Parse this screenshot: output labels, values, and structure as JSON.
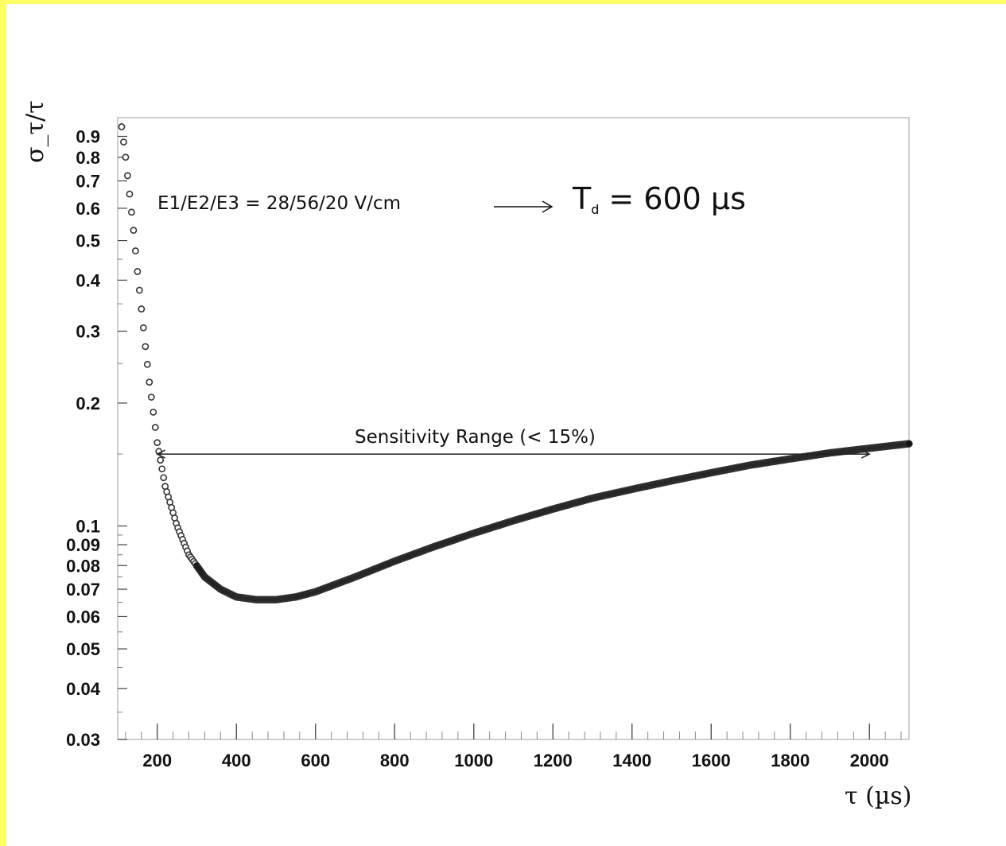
{
  "chart_data": {
    "type": "scatter",
    "title": "",
    "xlabel": "τ (µs)",
    "ylabel": "σ_τ/τ",
    "xlim": [
      100,
      2100
    ],
    "ylim": [
      0.03,
      1.0
    ],
    "y_scale": "log",
    "x_ticks": [
      200,
      400,
      600,
      800,
      1000,
      1200,
      1400,
      1600,
      1800,
      2000
    ],
    "x_tick_labels": [
      "200",
      "400",
      "600",
      "800",
      "1000",
      "1200",
      "1400",
      "1600",
      "1800",
      "2000"
    ],
    "y_ticks": [
      0.03,
      0.04,
      0.05,
      0.06,
      0.07,
      0.08,
      0.09,
      0.1,
      0.2,
      0.3,
      0.4,
      0.5,
      0.6,
      0.7,
      0.8,
      0.9
    ],
    "y_tick_labels": [
      "0.03",
      "0.04",
      "0.05",
      "0.06",
      "0.07",
      "0.08",
      "0.09",
      "0.1",
      "0.2",
      "0.3",
      "0.4",
      "0.5",
      "0.6",
      "0.7",
      "0.8",
      "0.9"
    ],
    "grid": false,
    "annotation_fields": "E1/E2/E3 = 28/56/20 V/cm",
    "annotation_td_main": "T",
    "annotation_td_sub": "d",
    "annotation_td_value": "= 600 µs",
    "sensitivity_label": "Sensitivity Range (< 15%)",
    "sensitivity_range": {
      "x_start": 200,
      "x_end": 2000,
      "y": 0.15
    },
    "series": [
      {
        "x": [
          110,
          120,
          130,
          140,
          150,
          160,
          170,
          180,
          190,
          200,
          220,
          250,
          280,
          320,
          360,
          400,
          450,
          500,
          550,
          600,
          700,
          800,
          900,
          1000,
          1100,
          1200,
          1300,
          1400,
          1500,
          1600,
          1700,
          1800,
          1900,
          2000,
          2100
        ],
        "y": [
          0.95,
          0.8,
          0.65,
          0.53,
          0.42,
          0.34,
          0.275,
          0.225,
          0.19,
          0.16,
          0.125,
          0.1,
          0.085,
          0.075,
          0.07,
          0.067,
          0.066,
          0.066,
          0.067,
          0.069,
          0.075,
          0.082,
          0.089,
          0.096,
          0.103,
          0.11,
          0.117,
          0.123,
          0.129,
          0.135,
          0.141,
          0.146,
          0.151,
          0.155,
          0.159
        ]
      }
    ]
  }
}
